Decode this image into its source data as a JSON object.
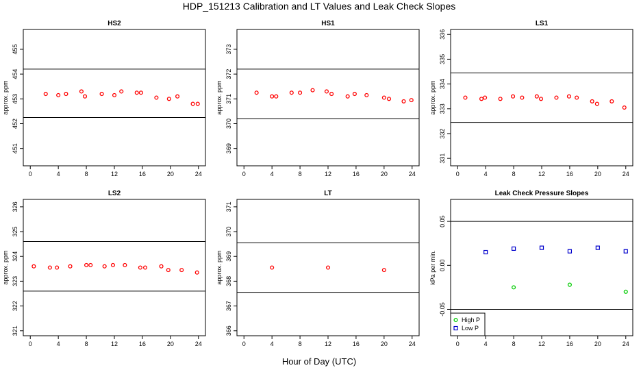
{
  "figure": {
    "title": "HDP_151213  Calibration and LT Values and Leak Check Slopes",
    "xlabel": "Hour of Day (UTC)"
  },
  "chart_data": [
    {
      "type": "scatter",
      "title": "HS2",
      "ylabel": "approx. ppm",
      "xlim": [
        -1,
        25
      ],
      "ylim": [
        450.3,
        455.8
      ],
      "xticks": [
        0,
        4,
        8,
        12,
        16,
        20,
        24
      ],
      "yticks": [
        451,
        452,
        453,
        454,
        455
      ],
      "hlines": [
        454.2,
        452.25
      ],
      "series": [
        {
          "marker": "circle",
          "color": "#ff0000",
          "x": [
            2.2,
            4.0,
            5.1,
            7.3,
            7.8,
            10.2,
            12.0,
            13.0,
            15.2,
            15.8,
            18.0,
            19.8,
            21.0,
            23.2,
            23.9
          ],
          "y": [
            453.2,
            453.15,
            453.2,
            453.3,
            453.1,
            453.2,
            453.15,
            453.3,
            453.25,
            453.25,
            453.05,
            453.0,
            453.1,
            452.8,
            452.8
          ]
        }
      ]
    },
    {
      "type": "scatter",
      "title": "HS1",
      "ylabel": "approx. ppm",
      "xlim": [
        -1,
        25
      ],
      "ylim": [
        368.3,
        373.8
      ],
      "xticks": [
        0,
        4,
        8,
        12,
        16,
        20,
        24
      ],
      "yticks": [
        369,
        370,
        371,
        372,
        373
      ],
      "hlines": [
        372.2,
        370.2
      ],
      "series": [
        {
          "marker": "circle",
          "color": "#ff0000",
          "x": [
            1.8,
            4.0,
            4.6,
            6.8,
            8.0,
            9.8,
            11.8,
            12.5,
            14.8,
            15.8,
            17.5,
            20.0,
            20.7,
            22.8,
            23.9
          ],
          "y": [
            371.25,
            371.1,
            371.1,
            371.25,
            371.25,
            371.35,
            371.3,
            371.2,
            371.1,
            371.2,
            371.15,
            371.05,
            371.0,
            370.9,
            370.95
          ]
        }
      ]
    },
    {
      "type": "scatter",
      "title": "LS1",
      "ylabel": "approx. ppm",
      "xlim": [
        -1,
        25
      ],
      "ylim": [
        330.7,
        336.2
      ],
      "xticks": [
        0,
        4,
        8,
        12,
        16,
        20,
        24
      ],
      "yticks": [
        331,
        332,
        333,
        334,
        335,
        336
      ],
      "hlines": [
        334.45,
        332.45
      ],
      "series": [
        {
          "marker": "circle",
          "color": "#ff0000",
          "x": [
            1.1,
            3.4,
            3.9,
            6.1,
            7.9,
            9.2,
            11.3,
            11.9,
            14.1,
            15.9,
            17.0,
            19.2,
            19.9,
            22.0,
            23.8
          ],
          "y": [
            333.45,
            333.4,
            333.45,
            333.4,
            333.5,
            333.45,
            333.5,
            333.4,
            333.45,
            333.5,
            333.45,
            333.3,
            333.2,
            333.3,
            333.05
          ]
        }
      ]
    },
    {
      "type": "scatter",
      "title": "LS2",
      "ylabel": "approx. ppm",
      "xlim": [
        -1,
        25
      ],
      "ylim": [
        320.8,
        326.3
      ],
      "xticks": [
        0,
        4,
        8,
        12,
        16,
        20,
        24
      ],
      "yticks": [
        321,
        322,
        323,
        324,
        325,
        326
      ],
      "hlines": [
        324.6,
        322.6
      ],
      "series": [
        {
          "marker": "circle",
          "color": "#ff0000",
          "x": [
            0.5,
            2.8,
            3.8,
            5.7,
            8.0,
            8.6,
            10.6,
            11.8,
            13.5,
            15.7,
            16.4,
            18.7,
            19.7,
            21.6,
            23.8
          ],
          "y": [
            323.6,
            323.55,
            323.55,
            323.6,
            323.65,
            323.65,
            323.6,
            323.65,
            323.65,
            323.55,
            323.55,
            323.6,
            323.45,
            323.45,
            323.35
          ]
        }
      ]
    },
    {
      "type": "scatter",
      "title": "LT",
      "ylabel": "approx. ppm",
      "xlim": [
        -1,
        25
      ],
      "ylim": [
        365.8,
        371.3
      ],
      "xticks": [
        0,
        4,
        8,
        12,
        16,
        20,
        24
      ],
      "yticks": [
        366,
        367,
        368,
        369,
        370,
        371
      ],
      "hlines": [
        369.55,
        367.55
      ],
      "series": [
        {
          "marker": "circle",
          "color": "#ff0000",
          "x": [
            4.0,
            12.0,
            20.0
          ],
          "y": [
            368.55,
            368.55,
            368.45
          ]
        }
      ]
    },
    {
      "type": "scatter",
      "title": "Leak Check Pressure Slopes",
      "ylabel": "kPa per min.",
      "xlim": [
        -1,
        25
      ],
      "ylim": [
        -0.08,
        0.075
      ],
      "xticks": [
        0,
        4,
        8,
        12,
        16,
        20,
        24
      ],
      "yticks": [
        -0.05,
        0.0,
        0.05
      ],
      "ytick_labels": [
        "-0.05",
        "0.00",
        "0.05"
      ],
      "hlines": [
        0.05,
        -0.05
      ],
      "legend": {
        "placement": "bottom-left"
      },
      "series": [
        {
          "name": "High P",
          "marker": "circle",
          "color": "#00cc00",
          "x": [
            8.0,
            16.0,
            24.0
          ],
          "y": [
            -0.025,
            -0.022,
            -0.03
          ]
        },
        {
          "name": "Low P",
          "marker": "square",
          "color": "#0000cc",
          "x": [
            4.0,
            8.0,
            12.0,
            16.0,
            20.0,
            24.0
          ],
          "y": [
            0.015,
            0.019,
            0.02,
            0.016,
            0.02,
            0.016
          ]
        }
      ]
    }
  ]
}
